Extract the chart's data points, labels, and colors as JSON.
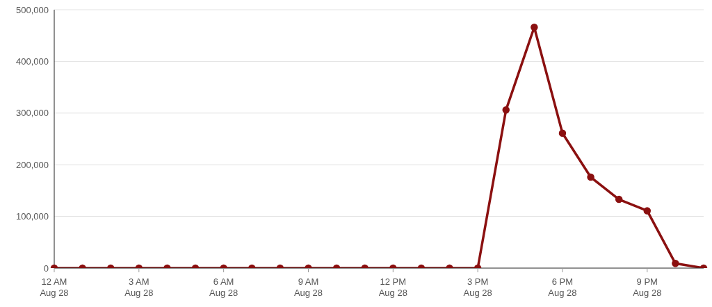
{
  "chart_data": {
    "type": "line",
    "categories": [
      "12 AM\nAug 28",
      null,
      null,
      "3 AM\nAug 28",
      null,
      null,
      "6 AM\nAug 28",
      null,
      null,
      "9 AM\nAug 28",
      null,
      null,
      "12 PM\nAug 28",
      null,
      null,
      "3 PM\nAug 28",
      null,
      null,
      "6 PM\nAug 28",
      null,
      null,
      "9 PM\nAug 28",
      null,
      null
    ],
    "values": [
      0,
      0,
      0,
      0,
      0,
      0,
      0,
      0,
      0,
      0,
      0,
      0,
      0,
      0,
      0,
      0,
      306000,
      466000,
      261000,
      176000,
      133000,
      111000,
      9000,
      0
    ],
    "color": "#8b1010",
    "marker": "circle",
    "line_style": "solid",
    "grid": "y",
    "ylim": [
      0,
      500000
    ],
    "yticks": [
      0,
      {
        "value": 100000,
        "label": "100,000"
      },
      {
        "value": 200000,
        "label": "200,000"
      },
      {
        "value": 300000,
        "label": "300,000"
      },
      {
        "value": 400000,
        "label": "400,000"
      },
      {
        "value": 500000,
        "label": "500,000"
      }
    ]
  }
}
